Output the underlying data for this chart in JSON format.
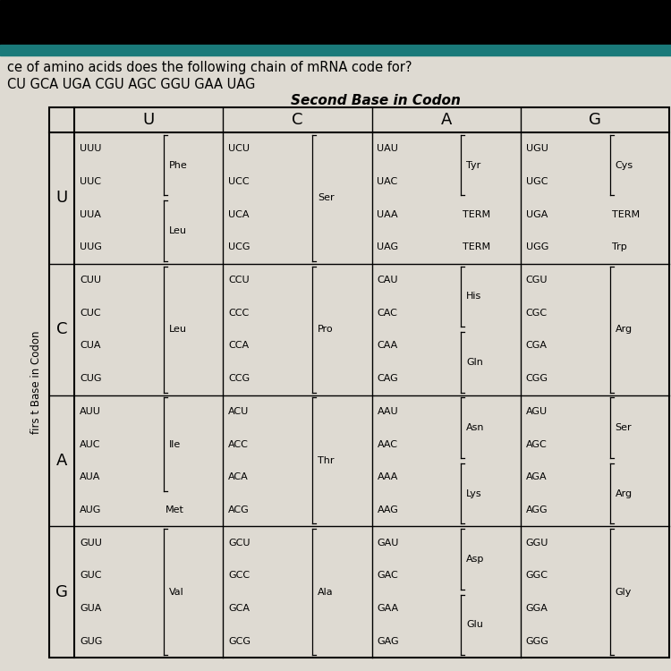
{
  "title_question": "ce of amino acids does the following chain of mRNA code for?",
  "title_sequence": "CU GCA UGA CGU AGC GGU GAA UAG",
  "second_base_label": "Second Base in Codon",
  "first_base_label": "firs t Base in Codon",
  "second_bases": [
    "U",
    "C",
    "A",
    "G"
  ],
  "first_bases": [
    "U",
    "C",
    "A",
    "G"
  ],
  "bg_color": "#dedad2",
  "top_black": "#000000",
  "top_teal": "#1a7a7a",
  "cells": {
    "UU": {
      "codons": [
        "UUU",
        "UUC",
        "UUA",
        "UUG"
      ],
      "groups": [
        {
          "codons_idx": [
            0,
            1
          ],
          "aa": "Phe"
        },
        {
          "codons_idx": [
            2,
            3
          ],
          "aa": "Leu"
        }
      ]
    },
    "UC": {
      "codons": [
        "UCU",
        "UCC",
        "UCA",
        "UCG"
      ],
      "groups": [
        {
          "codons_idx": [
            0,
            1,
            2,
            3
          ],
          "aa": "Ser"
        }
      ]
    },
    "UA": {
      "codons": [
        "UAU",
        "UAC",
        "UAA",
        "UAG"
      ],
      "groups": [
        {
          "codons_idx": [
            0,
            1
          ],
          "aa": "Tyr"
        },
        {
          "codons_idx": [
            2
          ],
          "aa": "TERM"
        },
        {
          "codons_idx": [
            3
          ],
          "aa": "TERM"
        }
      ]
    },
    "UG": {
      "codons": [
        "UGU",
        "UGC",
        "UGA",
        "UGG"
      ],
      "groups": [
        {
          "codons_idx": [
            0,
            1
          ],
          "aa": "Cys"
        },
        {
          "codons_idx": [
            2
          ],
          "aa": "TERM"
        },
        {
          "codons_idx": [
            3
          ],
          "aa": "Trp"
        }
      ]
    },
    "CU": {
      "codons": [
        "CUU",
        "CUC",
        "CUA",
        "CUG"
      ],
      "groups": [
        {
          "codons_idx": [
            0,
            1,
            2,
            3
          ],
          "aa": "Leu"
        }
      ]
    },
    "CC": {
      "codons": [
        "CCU",
        "CCC",
        "CCA",
        "CCG"
      ],
      "groups": [
        {
          "codons_idx": [
            0,
            1,
            2,
            3
          ],
          "aa": "Pro"
        }
      ]
    },
    "CA": {
      "codons": [
        "CAU",
        "CAC",
        "CAA",
        "CAG"
      ],
      "groups": [
        {
          "codons_idx": [
            0,
            1
          ],
          "aa": "His"
        },
        {
          "codons_idx": [
            2,
            3
          ],
          "aa": "Gln"
        }
      ]
    },
    "CG": {
      "codons": [
        "CGU",
        "CGC",
        "CGA",
        "CGG"
      ],
      "groups": [
        {
          "codons_idx": [
            0,
            1,
            2,
            3
          ],
          "aa": "Arg"
        }
      ]
    },
    "AU": {
      "codons": [
        "AUU",
        "AUC",
        "AUA",
        "AUG"
      ],
      "groups": [
        {
          "codons_idx": [
            0,
            1,
            2
          ],
          "aa": "Ile"
        },
        {
          "codons_idx": [
            3
          ],
          "aa": "Met"
        }
      ]
    },
    "AC": {
      "codons": [
        "ACU",
        "ACC",
        "ACA",
        "ACG"
      ],
      "groups": [
        {
          "codons_idx": [
            0,
            1,
            2,
            3
          ],
          "aa": "Thr"
        }
      ]
    },
    "AA": {
      "codons": [
        "AAU",
        "AAC",
        "AAA",
        "AAG"
      ],
      "groups": [
        {
          "codons_idx": [
            0,
            1
          ],
          "aa": "Asn"
        },
        {
          "codons_idx": [
            2,
            3
          ],
          "aa": "Lys"
        }
      ]
    },
    "AG": {
      "codons": [
        "AGU",
        "AGC",
        "AGA",
        "AGG"
      ],
      "groups": [
        {
          "codons_idx": [
            0,
            1
          ],
          "aa": "Ser"
        },
        {
          "codons_idx": [
            2,
            3
          ],
          "aa": "Arg"
        }
      ]
    },
    "GU": {
      "codons": [
        "GUU",
        "GUC",
        "GUA",
        "GUG"
      ],
      "groups": [
        {
          "codons_idx": [
            0,
            1,
            2,
            3
          ],
          "aa": "Val"
        }
      ]
    },
    "GC": {
      "codons": [
        "GCU",
        "GCC",
        "GCA",
        "GCG"
      ],
      "groups": [
        {
          "codons_idx": [
            0,
            1,
            2,
            3
          ],
          "aa": "Ala"
        }
      ]
    },
    "GA": {
      "codons": [
        "GAU",
        "GAC",
        "GAA",
        "GAG"
      ],
      "groups": [
        {
          "codons_idx": [
            0,
            1
          ],
          "aa": "Asp"
        },
        {
          "codons_idx": [
            2,
            3
          ],
          "aa": "Glu"
        }
      ]
    },
    "GG": {
      "codons": [
        "GGU",
        "GGC",
        "GGA",
        "GGG"
      ],
      "groups": [
        {
          "codons_idx": [
            0,
            1,
            2,
            3
          ],
          "aa": "Gly"
        }
      ]
    }
  }
}
